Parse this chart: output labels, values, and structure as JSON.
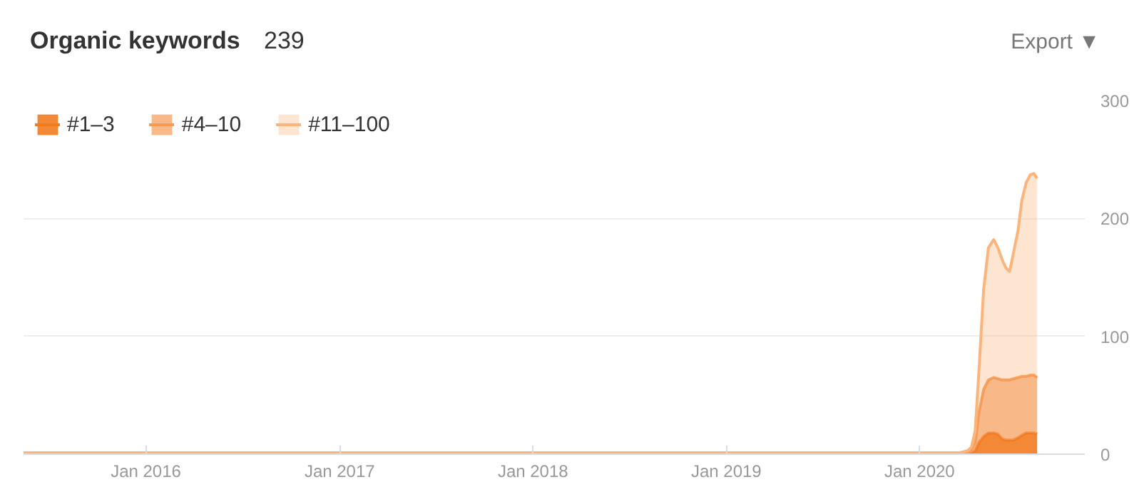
{
  "chart_data": {
    "type": "area",
    "title": "Organic keywords",
    "subtitle": "239",
    "annotations": [
      "Export ▼"
    ],
    "stacked": true,
    "x": [
      "2015-05-15",
      "2020-03-15",
      "2020-04-01",
      "2020-04-08",
      "2020-04-15",
      "2020-04-22",
      "2020-05-01",
      "2020-05-10",
      "2020-05-20",
      "2020-05-28",
      "2020-06-05",
      "2020-06-12",
      "2020-06-19",
      "2020-06-26",
      "2020-07-05",
      "2020-07-12",
      "2020-07-20",
      "2020-07-28",
      "2020-08-04",
      "2020-08-10"
    ],
    "series": [
      {
        "name": "#1–3",
        "color": "#f27b21",
        "values": [
          0,
          0,
          0,
          1,
          3,
          10,
          15,
          18,
          18,
          17,
          13,
          12,
          12,
          12,
          14,
          16,
          18,
          18,
          18,
          17
        ]
      },
      {
        "name": "#4–10",
        "color": "#f79a55",
        "values": [
          1,
          1,
          2,
          3,
          7,
          25,
          40,
          45,
          47,
          47,
          50,
          51,
          51,
          52,
          51,
          50,
          48,
          49,
          49,
          48
        ]
      },
      {
        "name": "#11–100",
        "color": "#fbb47c",
        "values": [
          0,
          0,
          1,
          2,
          10,
          35,
          85,
          112,
          117,
          111,
          102,
          95,
          92,
          106,
          125,
          149,
          164,
          170,
          171,
          169
        ]
      }
    ],
    "xlim": [
      "2015-05-15",
      "2020-11-08"
    ],
    "xticks": [
      {
        "value": "2016-01-01",
        "label": "Jan 2016"
      },
      {
        "value": "2017-01-01",
        "label": "Jan 2017"
      },
      {
        "value": "2018-01-01",
        "label": "Jan 2018"
      },
      {
        "value": "2019-01-01",
        "label": "Jan 2019"
      },
      {
        "value": "2020-01-01",
        "label": "Jan 2020"
      }
    ],
    "ylim": [
      0,
      300
    ],
    "yticks": [
      0,
      100,
      200,
      300
    ],
    "grid": "y",
    "legend": "top left"
  }
}
